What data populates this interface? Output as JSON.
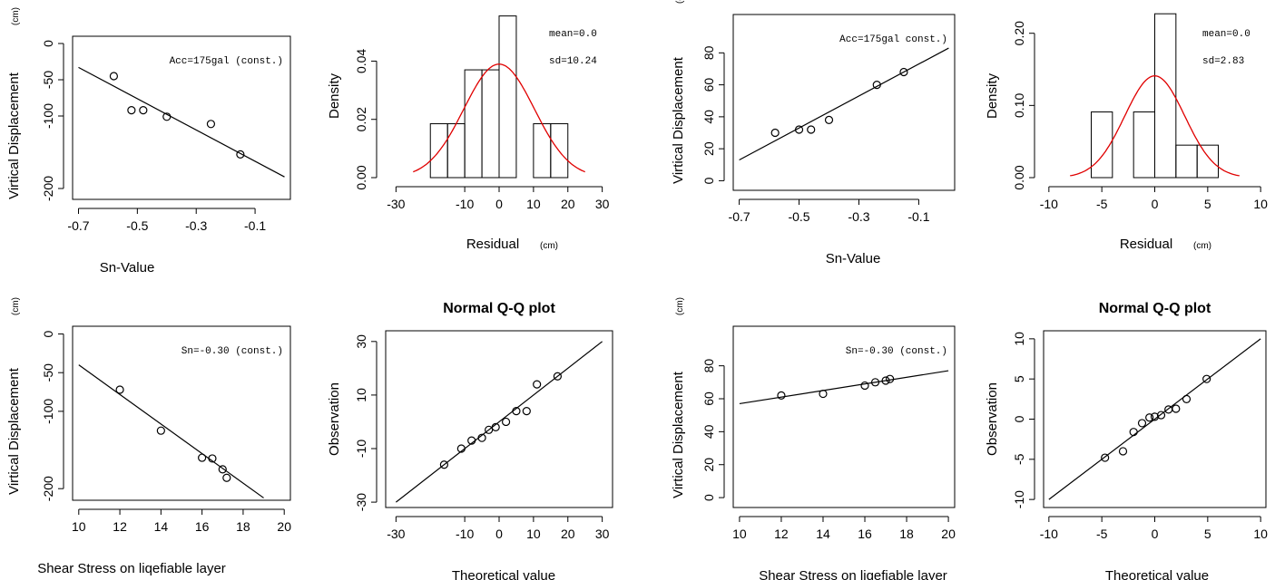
{
  "figure": {
    "title": "",
    "colors": {
      "axis": "#000000",
      "density_curve": "#e00000",
      "background": "#ffffff"
    }
  },
  "chart_data": [
    {
      "id": "p1",
      "type": "scatter",
      "title": "",
      "xlabel": "Sn-Value",
      "ylabel": "Virtical Displacement",
      "ylabel_unit": "(cm)",
      "annotation": "Acc=175gal (const.)",
      "xlim": [
        -0.72,
        0.02
      ],
      "ylim": [
        -215,
        10
      ],
      "y_reversed": true,
      "xticks": [
        -0.7,
        -0.5,
        -0.3,
        -0.1
      ],
      "xtick_labels": [
        "-0.7",
        "-0.5",
        "-0.3",
        "-0.1"
      ],
      "yticks": [
        0,
        -50,
        -100,
        -200
      ],
      "ytick_labels": [
        "0",
        "-50",
        "-100",
        "-200"
      ],
      "points": [
        [
          -0.58,
          -45
        ],
        [
          -0.52,
          -92
        ],
        [
          -0.48,
          -92
        ],
        [
          -0.4,
          -101
        ],
        [
          -0.25,
          -111
        ],
        [
          -0.15,
          -153
        ]
      ],
      "fit_line": [
        [
          -0.7,
          -33
        ],
        [
          0.0,
          -184
        ]
      ]
    },
    {
      "id": "p2",
      "type": "bar",
      "subtype": "histogram",
      "title": "",
      "xlabel": "Residual",
      "xlabel_unit": "(cm)",
      "ylabel": "Density",
      "annotation_lines": [
        "mean=0.0",
        "sd=10.24"
      ],
      "xlim": [
        -33,
        33
      ],
      "ylim": [
        0,
        0.056
      ],
      "xticks": [
        -30,
        -10,
        0,
        10,
        20,
        30
      ],
      "xtick_labels": [
        "-30",
        "-10",
        "0",
        "10",
        "20",
        "30"
      ],
      "yticks": [
        0,
        0.02,
        0.04
      ],
      "ytick_labels": [
        "0.00",
        "0.02",
        "0.04"
      ],
      "bins": [
        {
          "x0": -20,
          "x1": -15,
          "density": 0.0185
        },
        {
          "x0": -15,
          "x1": -10,
          "density": 0.0185
        },
        {
          "x0": -10,
          "x1": -5,
          "density": 0.037
        },
        {
          "x0": -5,
          "x1": 0,
          "density": 0.037
        },
        {
          "x0": 0,
          "x1": 5,
          "density": 0.0555
        },
        {
          "x0": 5,
          "x1": 10,
          "density": 0.0
        },
        {
          "x0": 10,
          "x1": 15,
          "density": 0.0185
        },
        {
          "x0": 15,
          "x1": 20,
          "density": 0.0185
        }
      ],
      "curve": {
        "mean": 0.0,
        "sd": 10.24,
        "from": -25,
        "to": 25
      }
    },
    {
      "id": "p3",
      "type": "scatter",
      "title": "",
      "xlabel": "Sn-Value",
      "ylabel": "Virtical Displacement",
      "ylabel_unit": "(cm)",
      "annotation": "Acc=175gal const.)",
      "xlim": [
        -0.72,
        0.02
      ],
      "ylim": [
        -6,
        104
      ],
      "xticks": [
        -0.7,
        -0.5,
        -0.3,
        -0.1
      ],
      "xtick_labels": [
        "-0.7",
        "-0.5",
        "-0.3",
        "-0.1"
      ],
      "yticks": [
        0,
        20,
        40,
        60,
        80
      ],
      "ytick_labels": [
        "0",
        "20",
        "40",
        "60",
        "80"
      ],
      "points": [
        [
          -0.58,
          30
        ],
        [
          -0.5,
          32
        ],
        [
          -0.46,
          32
        ],
        [
          -0.4,
          38
        ],
        [
          -0.24,
          60
        ],
        [
          -0.15,
          68
        ]
      ],
      "fit_line": [
        [
          -0.7,
          13
        ],
        [
          0.0,
          83
        ]
      ]
    },
    {
      "id": "p4",
      "type": "bar",
      "subtype": "histogram",
      "title": "",
      "xlabel": "Residual",
      "xlabel_unit": "(cm)",
      "ylabel": "Density",
      "annotation_lines": [
        "mean=0.0",
        "sd=2.83"
      ],
      "xlim": [
        -10.5,
        10.5
      ],
      "ylim": [
        0,
        0.226
      ],
      "xticks": [
        -10,
        -5,
        0,
        5,
        10
      ],
      "xtick_labels": [
        "-10",
        "-5",
        "0",
        "5",
        "10"
      ],
      "yticks": [
        0,
        0.1,
        0.2
      ],
      "ytick_labels": [
        "0.00",
        "0.10",
        "0.20"
      ],
      "bins": [
        {
          "x0": -6,
          "x1": -4,
          "density": 0.091
        },
        {
          "x0": -4,
          "x1": -2,
          "density": 0.0
        },
        {
          "x0": -2,
          "x1": 0,
          "density": 0.091
        },
        {
          "x0": 0,
          "x1": 2,
          "density": 0.227
        },
        {
          "x0": 2,
          "x1": 4,
          "density": 0.045
        },
        {
          "x0": 4,
          "x1": 6,
          "density": 0.045
        }
      ],
      "curve": {
        "mean": 0.0,
        "sd": 2.83,
        "from": -8,
        "to": 8
      }
    },
    {
      "id": "p5",
      "type": "scatter",
      "title": "",
      "xlabel": "Shear Stress on liqefiable layer",
      "ylabel": "Virtical Displacement",
      "ylabel_unit": "(cm)",
      "annotation": "Sn=-0.30 (const.)",
      "xlim": [
        9.7,
        20.3
      ],
      "ylim": [
        -215,
        10
      ],
      "y_reversed": true,
      "xticks": [
        10,
        12,
        14,
        16,
        18,
        20
      ],
      "xtick_labels": [
        "10",
        "12",
        "14",
        "16",
        "18",
        "20"
      ],
      "yticks": [
        0,
        -50,
        -100,
        -200
      ],
      "ytick_labels": [
        "0",
        "-50",
        "-100",
        "-200"
      ],
      "points": [
        [
          12.0,
          -72
        ],
        [
          14.0,
          -125
        ],
        [
          16.0,
          -160
        ],
        [
          16.5,
          -161
        ],
        [
          17.0,
          -175
        ],
        [
          17.2,
          -186
        ]
      ],
      "fit_line": [
        [
          10.0,
          -40
        ],
        [
          19.0,
          -212
        ]
      ]
    },
    {
      "id": "p6",
      "type": "scatter",
      "subtype": "qqplot",
      "title": "Normal Q-Q plot",
      "xlabel": "Theoretical value",
      "ylabel": "Observation",
      "xlim": [
        -33,
        33
      ],
      "ylim": [
        -32,
        34
      ],
      "xticks": [
        -30,
        -10,
        0,
        10,
        20,
        30
      ],
      "xtick_labels": [
        "-30",
        "-10",
        "0",
        "10",
        "20",
        "30"
      ],
      "yticks": [
        -30,
        -10,
        10,
        30
      ],
      "ytick_labels": [
        "-30",
        "-10",
        "10",
        "30"
      ],
      "points": [
        [
          -16,
          -16
        ],
        [
          -11,
          -10
        ],
        [
          -8,
          -7
        ],
        [
          -5,
          -6
        ],
        [
          -3,
          -3
        ],
        [
          -1,
          -2
        ],
        [
          2,
          0
        ],
        [
          5,
          4
        ],
        [
          8,
          4
        ],
        [
          11,
          14
        ],
        [
          17,
          17
        ]
      ],
      "ref_line": [
        [
          -30,
          -30
        ],
        [
          30,
          30
        ]
      ]
    },
    {
      "id": "p7",
      "type": "scatter",
      "title": "",
      "xlabel": "Shear Stress on liqefiable layer",
      "ylabel": "Virtical Displacement",
      "ylabel_unit": "(cm)",
      "annotation": "Sn=-0.30 (const.)",
      "xlim": [
        9.7,
        20.3
      ],
      "ylim": [
        -6,
        104
      ],
      "xticks": [
        10,
        12,
        14,
        16,
        18,
        20
      ],
      "xtick_labels": [
        "10",
        "12",
        "14",
        "16",
        "18",
        "20"
      ],
      "yticks": [
        0,
        20,
        40,
        60,
        80
      ],
      "ytick_labels": [
        "0",
        "20",
        "40",
        "60",
        "80"
      ],
      "points": [
        [
          12.0,
          62
        ],
        [
          14.0,
          63
        ],
        [
          16.0,
          68
        ],
        [
          16.5,
          70
        ],
        [
          17.0,
          71
        ],
        [
          17.2,
          72
        ]
      ],
      "fit_line": [
        [
          10.0,
          57
        ],
        [
          20.0,
          77
        ]
      ]
    },
    {
      "id": "p8",
      "type": "scatter",
      "subtype": "qqplot",
      "title": "Normal Q-Q plot",
      "xlabel": "Theoretical value",
      "ylabel": "Observation",
      "xlim": [
        -10.5,
        10.5
      ],
      "ylim": [
        -11,
        11
      ],
      "xticks": [
        -10,
        -5,
        0,
        5,
        10
      ],
      "xtick_labels": [
        "-10",
        "-5",
        "0",
        "5",
        "10"
      ],
      "yticks": [
        -10,
        -5,
        0,
        5,
        10
      ],
      "ytick_labels": [
        "-10",
        "-5",
        "0",
        "5",
        "10"
      ],
      "points": [
        [
          -4.7,
          -4.8
        ],
        [
          -3.0,
          -4.0
        ],
        [
          -2.0,
          -1.6
        ],
        [
          -1.2,
          -0.5
        ],
        [
          -0.5,
          0.2
        ],
        [
          0.0,
          0.3
        ],
        [
          0.6,
          0.5
        ],
        [
          1.3,
          1.2
        ],
        [
          2.0,
          1.3
        ],
        [
          3.0,
          2.5
        ],
        [
          4.9,
          5.0
        ]
      ],
      "ref_line": [
        [
          -10,
          -10
        ],
        [
          10,
          10
        ]
      ]
    }
  ]
}
